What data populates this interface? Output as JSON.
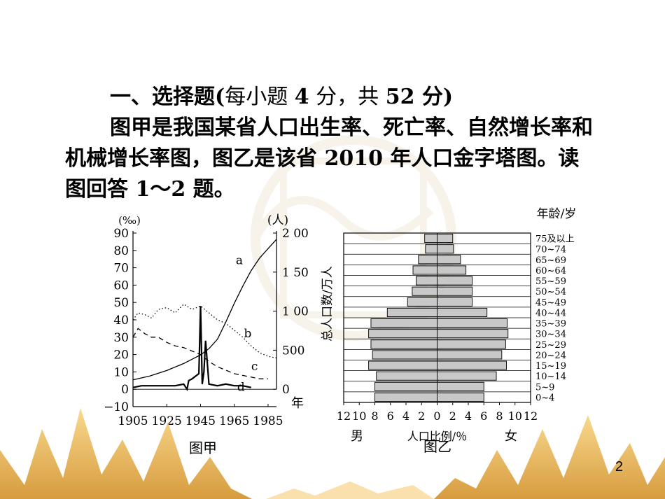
{
  "question": {
    "heading_bold": "一、选择题",
    "heading_paren_open": "(",
    "heading_text1": "每小题 ",
    "heading_num1": "4",
    "heading_text2": " 分，共 ",
    "heading_num2": "52",
    "heading_text3": " 分)",
    "paragraph": "图甲是我国某省人口出生率、死亡率、自然增长率和机械增长率图，图乙是该省 2010 年人口金字塔图。读图回答 1～2 题。"
  },
  "page_number": "2",
  "chart_data": [
    {
      "type": "line",
      "caption": "图甲",
      "left_axis_unit": "(‰)",
      "right_axis_unit": "(人)",
      "x_axis_unit": "年",
      "x_ticks": [
        "1905",
        "1925",
        "1945",
        "1965",
        "1985"
      ],
      "left_ticks": [
        "90",
        "80",
        "70",
        "60",
        "50",
        "40",
        "30",
        "20",
        "10",
        "0",
        "−10"
      ],
      "right_ticks": [
        "2 000",
        "1 500",
        "1 000",
        "500",
        "0"
      ],
      "xlim": [
        1905,
        1990
      ],
      "ylim": [
        -10,
        90
      ],
      "series": [
        {
          "name": "a",
          "axis": "right",
          "style": "solid",
          "x": [
            1905,
            1915,
            1925,
            1935,
            1945,
            1950,
            1955,
            1960,
            1965,
            1970,
            1975,
            1980,
            1985,
            1990
          ],
          "y": [
            120,
            170,
            240,
            330,
            440,
            520,
            640,
            860,
            1100,
            1320,
            1520,
            1680,
            1800,
            1920
          ]
        },
        {
          "name": "b",
          "axis": "left",
          "style": "dotted",
          "x": [
            1905,
            1908,
            1912,
            1916,
            1920,
            1925,
            1930,
            1935,
            1940,
            1945,
            1950,
            1955,
            1960,
            1965,
            1970,
            1975,
            1980,
            1985,
            1990
          ],
          "y": [
            40,
            44,
            43,
            41,
            46,
            47,
            44,
            49,
            46,
            48,
            44,
            40,
            38,
            34,
            30,
            25,
            21,
            19,
            18
          ]
        },
        {
          "name": "c",
          "axis": "left",
          "style": "dashed",
          "x": [
            1905,
            1908,
            1912,
            1916,
            1920,
            1925,
            1930,
            1935,
            1940,
            1945,
            1950,
            1955,
            1960,
            1965,
            1970,
            1975,
            1980,
            1985
          ],
          "y": [
            30,
            35,
            32,
            30,
            30,
            27,
            25,
            24,
            22,
            20,
            16,
            13,
            11,
            9,
            8,
            7,
            6,
            6
          ]
        },
        {
          "name": "d",
          "axis": "left",
          "style": "solid",
          "x": [
            1905,
            1910,
            1920,
            1930,
            1935,
            1937,
            1938,
            1940,
            1944,
            1945,
            1946,
            1947,
            1948,
            1950,
            1955,
            1960,
            1965,
            1970,
            1975
          ],
          "y": [
            1,
            2,
            2,
            2,
            3,
            0,
            5,
            6,
            9,
            48,
            3,
            10,
            28,
            3,
            2,
            3,
            2,
            2,
            1
          ]
        }
      ]
    },
    {
      "type": "bar",
      "caption": "图乙",
      "title": "人口金字塔",
      "y_axis_label": "总人口数/万人",
      "age_axis_label": "年龄/岁",
      "x_axis_label": "人口比例/％",
      "left_label": "男",
      "right_label": "女",
      "x_ticks_left": [
        "12",
        "10",
        "8",
        "6",
        "4",
        "2",
        "0"
      ],
      "x_ticks_right": [
        "2",
        "4",
        "6",
        "8",
        "10",
        "12"
      ],
      "xlim": [
        -12,
        12
      ],
      "categories": [
        "0~4",
        "5~9",
        "10~14",
        "15~19",
        "20~24",
        "25~29",
        "30~34",
        "35~39",
        "40~44",
        "45~49",
        "50~54",
        "55~59",
        "60~64",
        "65~69",
        "70~74",
        "75及以上"
      ],
      "series": [
        {
          "name": "男",
          "values": [
            8.0,
            8.0,
            7.8,
            8.8,
            8.3,
            8.5,
            8.8,
            8.5,
            6.4,
            3.8,
            3.2,
            2.7,
            3.1,
            2.4,
            1.5,
            1.6
          ]
        },
        {
          "name": "女",
          "values": [
            6.0,
            6.0,
            7.6,
            8.9,
            8.3,
            8.8,
            9.1,
            9.0,
            6.4,
            4.5,
            4.5,
            4.5,
            3.7,
            3.0,
            2.1,
            2.0
          ]
        }
      ]
    }
  ]
}
